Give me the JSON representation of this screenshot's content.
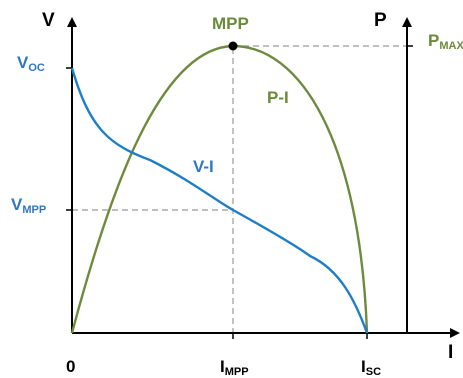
{
  "axes": {
    "left_label": "V",
    "right_label": "P",
    "bottom_label": "I"
  },
  "labels": {
    "voc_main": "V",
    "voc_sub": "OC",
    "vmpp_main": "V",
    "vmpp_sub": "MPP",
    "pmax_main": "P",
    "pmax_sub": "MAX",
    "origin": "0",
    "impp_main": "I",
    "impp_sub": "MPP",
    "isc_main": "I",
    "isc_sub": "SC",
    "mpp": "MPP",
    "vi_curve": "V-I",
    "pi_curve": "P-I"
  },
  "colors": {
    "vi_curve": "#1f7fc6",
    "pi_curve": "#6e8b3d",
    "blue_label": "#2e78c2",
    "green_label": "#6b8a3a",
    "axis": "#000000",
    "guide": "#999999"
  }
}
